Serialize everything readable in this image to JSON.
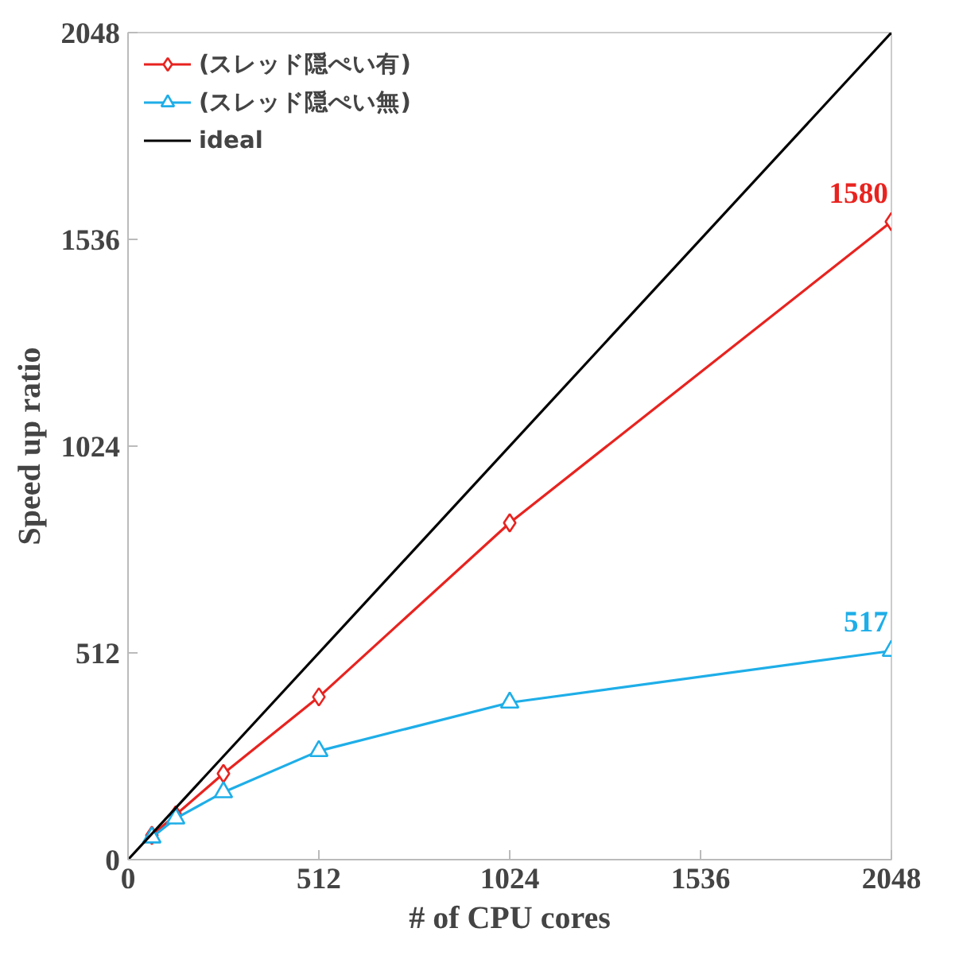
{
  "chart_data": {
    "type": "line",
    "xlabel": "# of CPU cores",
    "ylabel": "Speed up ratio",
    "xlim": [
      0,
      2048
    ],
    "ylim": [
      0,
      2048
    ],
    "xticks": [
      0,
      512,
      1024,
      1536,
      2048
    ],
    "yticks": [
      0,
      512,
      1024,
      1536,
      2048
    ],
    "grid": false,
    "legend": "top left",
    "series": [
      {
        "name": "(スレッド隠ぺい有)",
        "color": "#e8231f",
        "marker": "diamond",
        "x": [
          64,
          128,
          256,
          512,
          1024,
          2048
        ],
        "values": [
          60,
          111,
          213,
          403,
          834,
          1580
        ],
        "value_labels": [
          null,
          null,
          null,
          null,
          null,
          "1580"
        ]
      },
      {
        "name": "(スレッド隠ぺい無)",
        "color": "#1eaee8",
        "marker": "triangle",
        "x": [
          64,
          128,
          256,
          512,
          1024,
          2048
        ],
        "values": [
          55,
          102,
          167,
          269,
          389,
          517
        ],
        "value_labels": [
          null,
          null,
          null,
          null,
          null,
          "517"
        ]
      },
      {
        "name": "ideal",
        "color": "#000000",
        "marker": "none",
        "x": [
          0,
          2048
        ],
        "values": [
          0,
          2048
        ]
      }
    ]
  }
}
